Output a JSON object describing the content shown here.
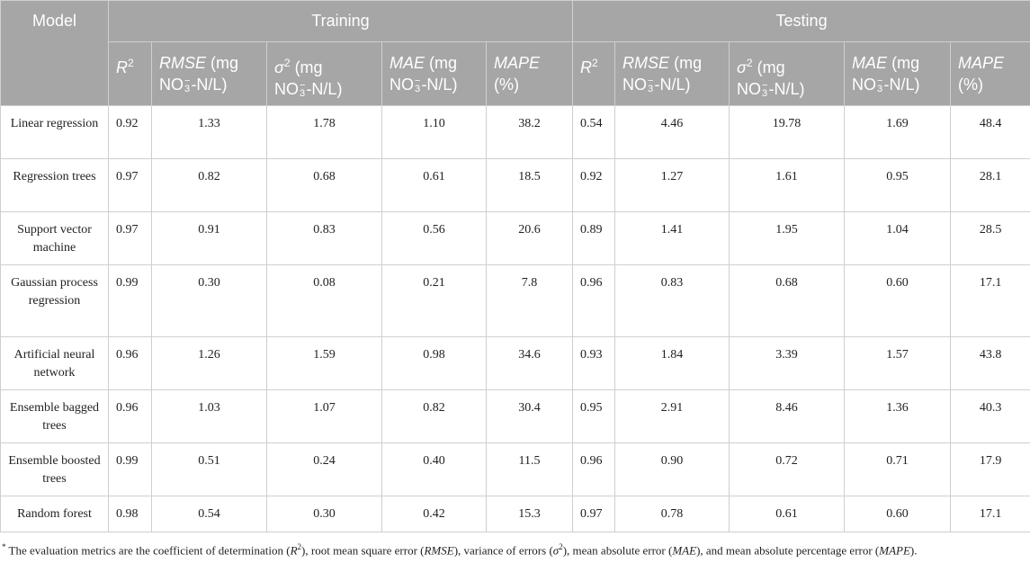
{
  "table": {
    "model_header": "Model",
    "groups": [
      {
        "name": "Training",
        "columns": [
          {
            "name": "R",
            "sup": "2"
          },
          {
            "name": "RMSE",
            "unit_a": "(mg",
            "unit_b": [
              "NO",
              "3",
              "−",
              "-N/L)"
            ]
          },
          {
            "name": "σ",
            "sup": "2",
            "unit_a": "(mg",
            "unit_b": [
              "NO",
              "3",
              "−",
              "-N/L)"
            ]
          },
          {
            "name": "MAE",
            "unit_a": "(mg",
            "unit_b": [
              "NO",
              "3",
              "−",
              "-N/L)"
            ]
          },
          {
            "name": "MAPE",
            "unit_b": "(%)"
          }
        ]
      },
      {
        "name": "Testing",
        "columns": [
          {
            "name": "R",
            "sup": "2"
          },
          {
            "name": "RMSE",
            "unit_a": "(mg",
            "unit_b": [
              "NO",
              "3",
              "−",
              "-N/L)"
            ]
          },
          {
            "name": "σ",
            "sup": "2",
            "unit_a": "(mg",
            "unit_b": [
              "NO",
              "3",
              "−",
              "-N/L)"
            ]
          },
          {
            "name": "MAE",
            "unit_a": "(mg",
            "unit_b": [
              "NO",
              "3",
              "−",
              "-N/L)"
            ]
          },
          {
            "name": "MAPE",
            "unit_b": "(%)"
          }
        ]
      }
    ],
    "rows": [
      {
        "model": "Linear regression",
        "values": [
          "0.92",
          "1.33",
          "1.78",
          "1.10",
          "38.2",
          "0.54",
          "4.46",
          "19.78",
          "1.69",
          "48.4"
        ]
      },
      {
        "model": "Regression trees",
        "values": [
          "0.97",
          "0.82",
          "0.68",
          "0.61",
          "18.5",
          "0.92",
          "1.27",
          "1.61",
          "0.95",
          "28.1"
        ]
      },
      {
        "model": "Support vector machine",
        "values": [
          "0.97",
          "0.91",
          "0.83",
          "0.56",
          "20.6",
          "0.89",
          "1.41",
          "1.95",
          "1.04",
          "28.5"
        ]
      },
      {
        "model": "Gaussian process regression",
        "values": [
          "0.99",
          "0.30",
          "0.08",
          "0.21",
          "7.8",
          "0.96",
          "0.83",
          "0.68",
          "0.60",
          "17.1"
        ]
      },
      {
        "model": "Artificial neural network",
        "values": [
          "0.96",
          "1.26",
          "1.59",
          "0.98",
          "34.6",
          "0.93",
          "1.84",
          "3.39",
          "1.57",
          "43.8"
        ]
      },
      {
        "model": "Ensemble bagged trees",
        "values": [
          "0.96",
          "1.03",
          "1.07",
          "0.82",
          "30.4",
          "0.95",
          "2.91",
          "8.46",
          "1.36",
          "40.3"
        ]
      },
      {
        "model": "Ensemble boosted trees",
        "values": [
          "0.99",
          "0.51",
          "0.24",
          "0.40",
          "11.5",
          "0.96",
          "0.90",
          "0.72",
          "0.71",
          "17.9"
        ]
      },
      {
        "model": "Random forest",
        "values": [
          "0.98",
          "0.54",
          "0.30",
          "0.42",
          "15.3",
          "0.97",
          "0.78",
          "0.61",
          "0.60",
          "17.1"
        ]
      }
    ]
  },
  "footnote": [
    {
      "sup": "*"
    },
    {
      "text": " The evaluation metrics are the coefficient of determination ("
    },
    {
      "italic": "R"
    },
    {
      "sup": "2"
    },
    {
      "text": "), root mean square error ("
    },
    {
      "italic": "RMSE"
    },
    {
      "text": "), variance of errors ("
    },
    {
      "italic": "σ"
    },
    {
      "sup": "2"
    },
    {
      "text": "), mean absolute error ("
    },
    {
      "italic": "MAE"
    },
    {
      "text": "), and mean absolute percentage error ("
    },
    {
      "italic": "MAPE"
    },
    {
      "text": ")."
    }
  ]
}
